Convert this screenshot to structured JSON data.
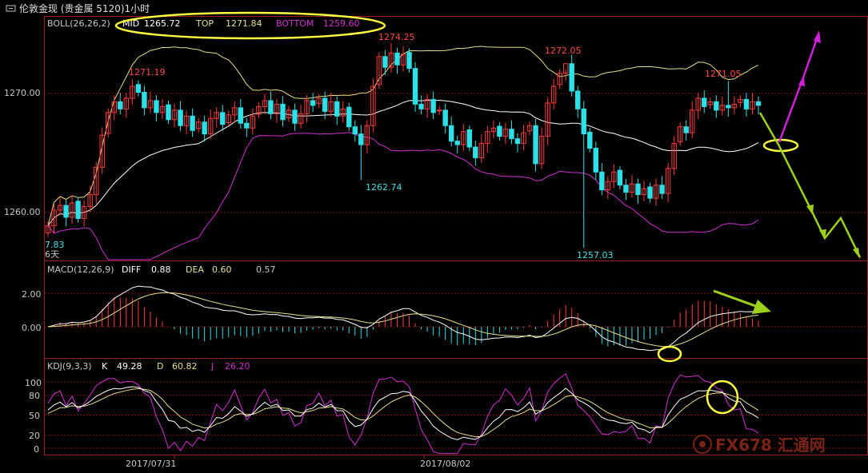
{
  "window": {
    "title": "伦敦金现 (贵金属 5120)1小时",
    "title_icon": "link-icon"
  },
  "colors": {
    "background": "#000000",
    "grid": "#7a1010",
    "axis": "#9a2020",
    "up_candle": "#ff3b3b",
    "down_candle": "#2be0e6",
    "mid_line": "#ffffff",
    "top_line": "#e6e08a",
    "bottom_line": "#d030d0",
    "label_red": "#ff4a4a",
    "label_cyan": "#40e0e6",
    "annotation_yellow": "#ffff40",
    "arrow_magenta": "#d020d8",
    "arrow_green": "#9ed21a"
  },
  "boll": {
    "name": "BOLL(26,26,2)",
    "mid_label": "MID",
    "mid_value": "1265.72",
    "top_label": "TOP",
    "top_value": "1271.84",
    "bottom_label": "BOTTOM",
    "bottom_value": "1259.60"
  },
  "macd": {
    "name": "MACD(12,26,9)",
    "diff_label": "DIFF",
    "diff_value": "0.88",
    "dea_label": "DEA",
    "dea_value": "0.60",
    "macd_value": "0.57"
  },
  "kdj": {
    "name": "KDJ(9,3,3)",
    "k_label": "K",
    "k_value": "49.28",
    "d_label": "D",
    "d_value": "60.82",
    "j_label": "J",
    "j_value": "26.20"
  },
  "price_annotations": {
    "high_1": "1271.19",
    "high_2": "1274.25",
    "high_3": "1272.05",
    "high_4": "1271.05",
    "low_1": "1262.74",
    "low_2": "1257.03",
    "low_left": "7.83",
    "left_marker": "6天"
  },
  "dates": [
    "2017/07/31",
    "2017/08/02"
  ],
  "watermark": "FX678 汇通网",
  "chart_data": [
    {
      "type": "candlestick",
      "title": "BOLL(26,26,2)",
      "y_ticks": [
        "1270.00",
        "1260.00"
      ],
      "ylim": [
        1255.5,
        1277.5
      ],
      "grid": true,
      "series": [
        {
          "name": "MID",
          "last": 1265.72
        },
        {
          "name": "TOP",
          "last": 1271.84
        },
        {
          "name": "BOTTOM",
          "last": 1259.6
        }
      ],
      "labeled_extremes": [
        1271.19,
        1274.25,
        1272.05,
        1271.05,
        1262.74,
        1257.03
      ],
      "closes": [
        1258.9,
        1260.2,
        1260.6,
        1259.6,
        1260.8,
        1259.5,
        1260.5,
        1261.5,
        1263.8,
        1266.5,
        1268.4,
        1269.3,
        1268.7,
        1269.6,
        1270.6,
        1270.1,
        1268.8,
        1269.4,
        1268.4,
        1268.9,
        1267.8,
        1268.6,
        1267.3,
        1268.1,
        1266.9,
        1267.6,
        1266.6,
        1267.9,
        1268.4,
        1267.4,
        1268.2,
        1268.8,
        1267.5,
        1267.1,
        1268.1,
        1268.9,
        1269.4,
        1268.3,
        1269.1,
        1267.8,
        1268.6,
        1267.5,
        1268.3,
        1269.4,
        1269.0,
        1269.6,
        1268.5,
        1269.3,
        1268.1,
        1268.7,
        1267.2,
        1266.6,
        1265.7,
        1267.3,
        1270.6,
        1273.1,
        1272.2,
        1273.4,
        1272.4,
        1273.3,
        1272.1,
        1269.1,
        1268.7,
        1269.5,
        1268.4,
        1268.6,
        1267.3,
        1266.0,
        1265.7,
        1266.8,
        1265.5,
        1264.6,
        1265.8,
        1266.8,
        1267.1,
        1266.4,
        1267.0,
        1266.2,
        1265.8,
        1266.7,
        1267.3,
        1264.1,
        1266.4,
        1269.2,
        1270.6,
        1271.7,
        1272.5,
        1270.2,
        1268.7,
        1266.6,
        1265.4,
        1263.4,
        1261.9,
        1262.6,
        1263.4,
        1262.3,
        1261.7,
        1262.4,
        1261.5,
        1262.0,
        1261.2,
        1262.3,
        1261.6,
        1263.7,
        1265.8,
        1267.2,
        1266.7,
        1268.6,
        1269.6,
        1268.9,
        1269.3,
        1268.6,
        1269.0,
        1268.8,
        1269.1,
        1269.5,
        1268.7,
        1269.3,
        1269.0
      ]
    },
    {
      "type": "macd",
      "title": "MACD(12,26,9)",
      "y_ticks": [
        "2.00",
        "0.00"
      ],
      "ylim": [
        -1.85,
        3.2
      ],
      "series": [
        {
          "name": "DIFF",
          "last": 0.88
        },
        {
          "name": "DEA",
          "last": 0.6
        }
      ],
      "last_bar": 0.57
    },
    {
      "type": "kdj",
      "title": "KDJ(9,3,3)",
      "y_ticks": [
        "100",
        "80",
        "50",
        "20",
        "0"
      ],
      "ylim": [
        -10,
        115
      ],
      "series": [
        {
          "name": "K",
          "last": 49.28
        },
        {
          "name": "D",
          "last": 60.82
        },
        {
          "name": "J",
          "last": 26.2
        }
      ]
    }
  ]
}
